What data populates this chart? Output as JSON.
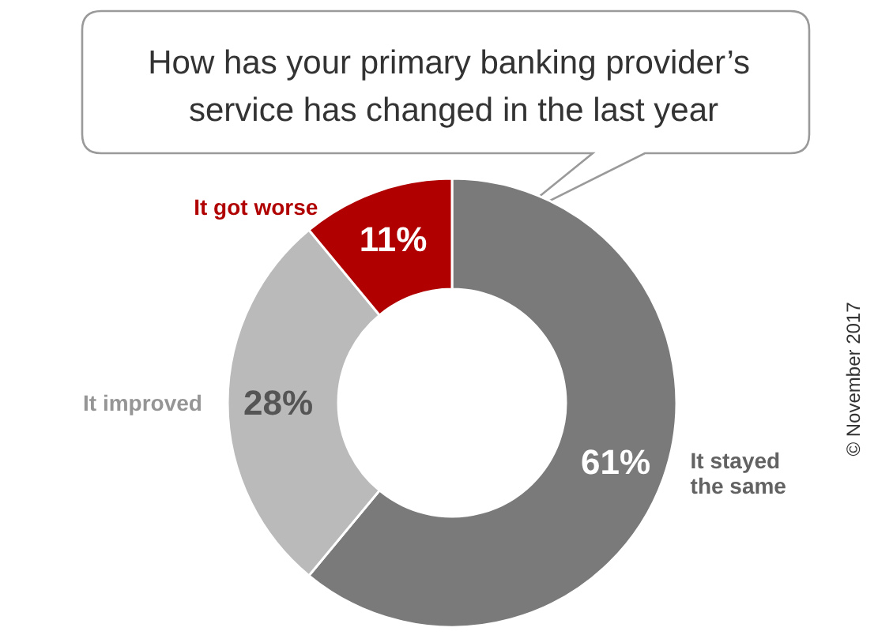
{
  "chart_data": {
    "type": "donut",
    "title": "How has your primary banking provider’s service has changed in the last year",
    "categories": [
      "It stayed the same",
      "It improved",
      "It got worse"
    ],
    "values": [
      61,
      28,
      11
    ],
    "colors": [
      "#7a7a7a",
      "#bababa",
      "#b00000"
    ],
    "value_labels": [
      "61%",
      "28%",
      "11%"
    ],
    "annotations": [
      "© November 2017"
    ]
  }
}
